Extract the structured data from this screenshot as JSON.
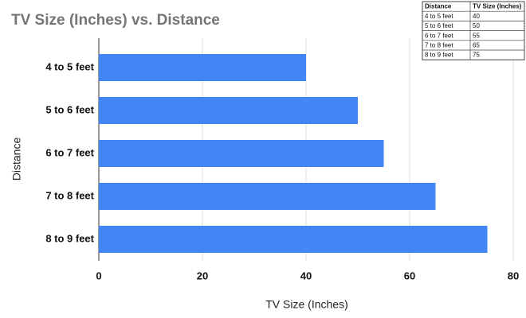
{
  "chart_data": {
    "type": "bar",
    "orientation": "horizontal",
    "title": "TV Size (Inches) vs. Distance",
    "categories": [
      "4 to 5 feet",
      "5 to 6 feet",
      "6 to 7 feet",
      "7 to 8 feet",
      "8 to 9 feet"
    ],
    "values": [
      40,
      50,
      55,
      65,
      75
    ],
    "color": "#4285f4",
    "xlim": [
      0,
      80
    ],
    "xticks": [
      0,
      20,
      40,
      60,
      80
    ],
    "grid": true,
    "xlabel": "TV Size (Inches)",
    "ylabel": "Distance"
  },
  "table": {
    "header": [
      "Distance",
      "TV Size (Inches)"
    ],
    "rows": [
      [
        "4 to 5 feet",
        "40"
      ],
      [
        "5 to 6 feet",
        "50"
      ],
      [
        "6 to 7 feet",
        "55"
      ],
      [
        "7 to 8 feet",
        "65"
      ],
      [
        "8 to 9 feet",
        "75"
      ]
    ]
  }
}
